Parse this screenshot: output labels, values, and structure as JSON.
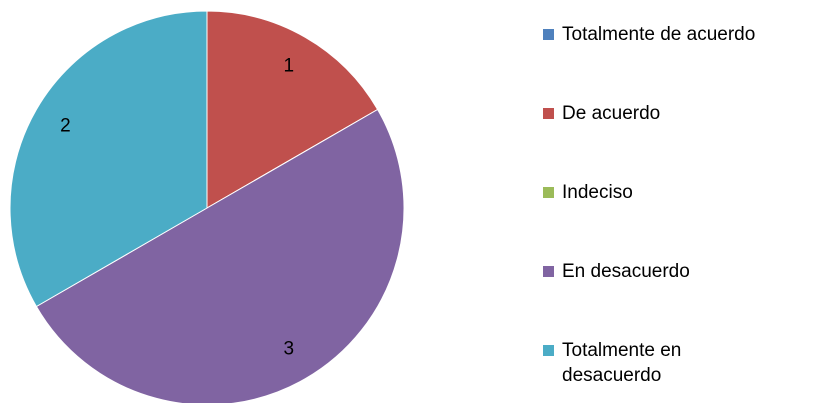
{
  "chart_data": {
    "type": "pie",
    "categories": [
      "Totalmente de acuerdo",
      "De acuerdo",
      "Indeciso",
      "En desacuerdo",
      "Totalmente en desacuerdo"
    ],
    "values": [
      0,
      1,
      0,
      3,
      2
    ],
    "colors": [
      "#4f81bd",
      "#c0504d",
      "#9bbb59",
      "#8064a2",
      "#4bacc6"
    ],
    "legend": "right"
  }
}
